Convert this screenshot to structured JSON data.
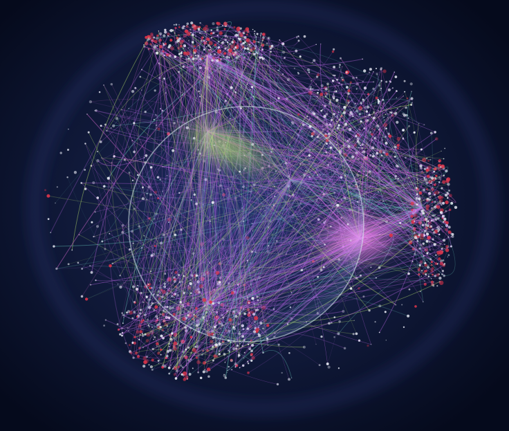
{
  "scene": {
    "subject": "network-sphere-visualization",
    "palette": {
      "background_center": "#1c2a5a",
      "background_edge": "#050a1c",
      "node_white": "#e6e8f2",
      "node_red": "#d8344a",
      "link_purple": "#c66bf0",
      "link_magenta": "#e06ad8",
      "link_green": "#c6f070",
      "link_teal": "#6fd8c8",
      "glow_magenta": "#ff7ef0",
      "ring": "#cfe3e8"
    },
    "node_count": 1800,
    "link_count": 1200,
    "seed": 4217
  }
}
